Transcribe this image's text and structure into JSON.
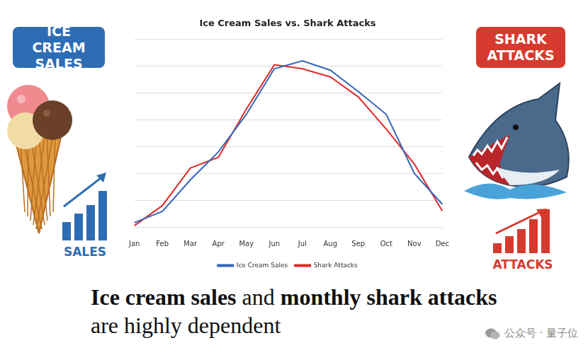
{
  "chart_data": {
    "type": "line",
    "title": "Ice Cream Sales vs. Shark Attacks",
    "categories": [
      "Jan",
      "Feb",
      "Mar",
      "Apr",
      "May",
      "Jun",
      "Jul",
      "Aug",
      "Sep",
      "Oct",
      "Nov",
      "Dec"
    ],
    "series": [
      {
        "name": "Ice Cream Sales",
        "color": "#3366b8",
        "values": [
          0.16,
          0.58,
          1.76,
          2.8,
          4.2,
          5.9,
          6.2,
          5.85,
          5.05,
          4.2,
          2.0,
          0.85
        ]
      },
      {
        "name": "Shark Attacks",
        "color": "#e02a2a",
        "values": [
          0.05,
          0.8,
          2.2,
          2.6,
          4.4,
          6.05,
          5.9,
          5.6,
          4.85,
          3.65,
          2.35,
          0.6
        ]
      }
    ],
    "ylim": [
      0,
      7
    ],
    "yticks": [
      0,
      1,
      2,
      3,
      4,
      5,
      6,
      7
    ],
    "grid": true,
    "legend": "bottom",
    "tick_labels": "x"
  },
  "badges": [
    {
      "text": "ICE CREAM SALES",
      "color": "#2e6db4",
      "sublabel": "SALES"
    },
    {
      "text": "SHARK ATTACKS",
      "color": "#d63a2f",
      "sublabel": "ATTACKS"
    }
  ],
  "caption": [
    [
      {
        "text": "Ice cream sales",
        "bold": true
      },
      {
        "text": " and ",
        "bold": false
      },
      {
        "text": "monthly shark attacks",
        "bold": true
      }
    ],
    [
      {
        "text": "are highly dependent",
        "bold": false
      }
    ]
  ],
  "watermark": "公众号 · 量子位"
}
